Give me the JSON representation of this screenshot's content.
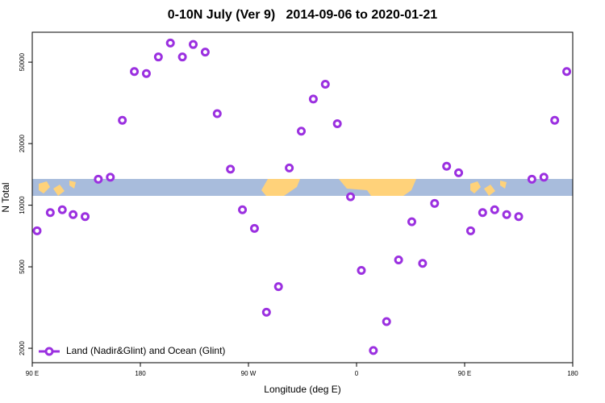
{
  "chart_data": {
    "type": "scatter",
    "title": "0-10N July (Ver 9)   2014-09-06 to 2020-01-21",
    "x_label": "Longitude (deg E)",
    "y_label": "N Total",
    "x": [
      94,
      105,
      115,
      124,
      134,
      145,
      155,
      165,
      175,
      185,
      195,
      205,
      215,
      224,
      234,
      244,
      255,
      265,
      275,
      285,
      295,
      304,
      314,
      324,
      334,
      344,
      355,
      364,
      374,
      385,
      395,
      406,
      415,
      425,
      435,
      445,
      455,
      465,
      475,
      485,
      495,
      506,
      516,
      525,
      535
    ],
    "series": [
      {
        "name": "Land (Nadir&Glint) and Ocean (Glint)",
        "color": "#9b30e0",
        "values": [
          7500,
          9200,
          9500,
          9000,
          8800,
          13400,
          13700,
          26000,
          45000,
          44000,
          53000,
          62000,
          53000,
          61000,
          56000,
          28000,
          15000,
          9500,
          7700,
          3000,
          4000,
          15200,
          23000,
          33000,
          39000,
          25000,
          11000,
          4800,
          1950,
          2700,
          5400,
          8300,
          5200,
          10200,
          15500,
          14400,
          7500,
          9200,
          9500,
          9000,
          8800,
          13400,
          13700,
          26000,
          45000
        ]
      }
    ],
    "xlim": [
      90,
      540
    ],
    "xticks": [
      {
        "value": 90,
        "label": "90 E"
      },
      {
        "value": 180,
        "label": "180"
      },
      {
        "value": 270,
        "label": "90 W"
      },
      {
        "value": 360,
        "label": "0"
      },
      {
        "value": 450,
        "label": "90 E"
      },
      {
        "value": 540,
        "label": "180"
      }
    ],
    "ylim": [
      1700,
      70000
    ],
    "yticks": [
      2000,
      5000,
      10000,
      20000,
      50000
    ],
    "log_y": true,
    "legend": "lower left"
  }
}
